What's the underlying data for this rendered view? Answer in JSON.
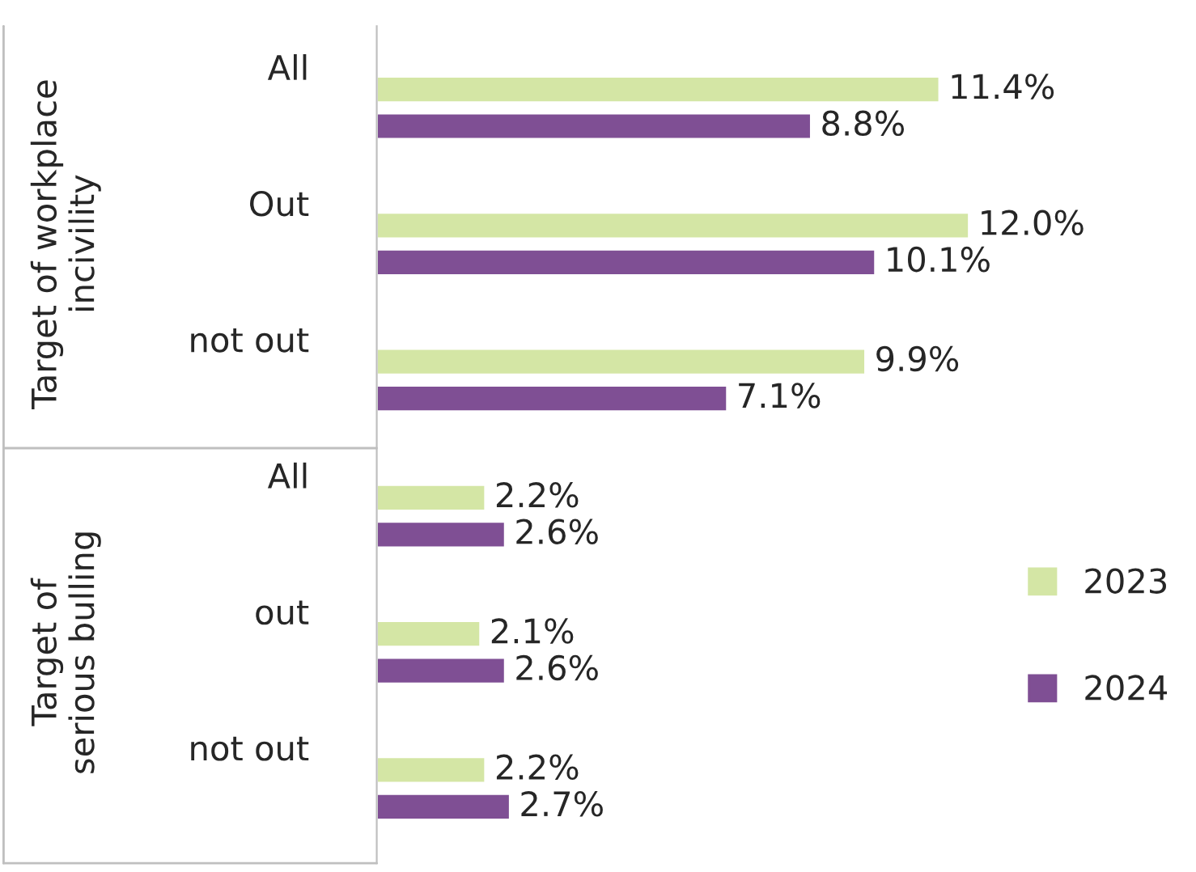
{
  "chart_data": {
    "type": "bar",
    "orientation": "horizontal",
    "categories": [
      "All",
      "Out",
      "not out",
      "All",
      "out",
      "not out"
    ],
    "series": [
      {
        "name": "2023",
        "color": "#d4e6a5",
        "values": [
          11.4,
          12.0,
          9.9,
          2.2,
          2.1,
          2.2
        ],
        "value_labels": [
          "11.4%",
          "12.0%",
          "9.9%",
          "2.2%",
          "2.1%",
          "2.2%"
        ]
      },
      {
        "name": "2024",
        "color": "#7f4f94",
        "values": [
          8.8,
          10.1,
          7.1,
          2.6,
          2.6,
          2.7
        ],
        "value_labels": [
          "8.8%",
          "10.1%",
          "7.1%",
          "2.6%",
          "2.6%",
          "2.7%"
        ]
      }
    ],
    "annotations": [
      "Target of workplace incivility",
      "Target of serious bulling"
    ],
    "legend": "right",
    "grid": false
  }
}
